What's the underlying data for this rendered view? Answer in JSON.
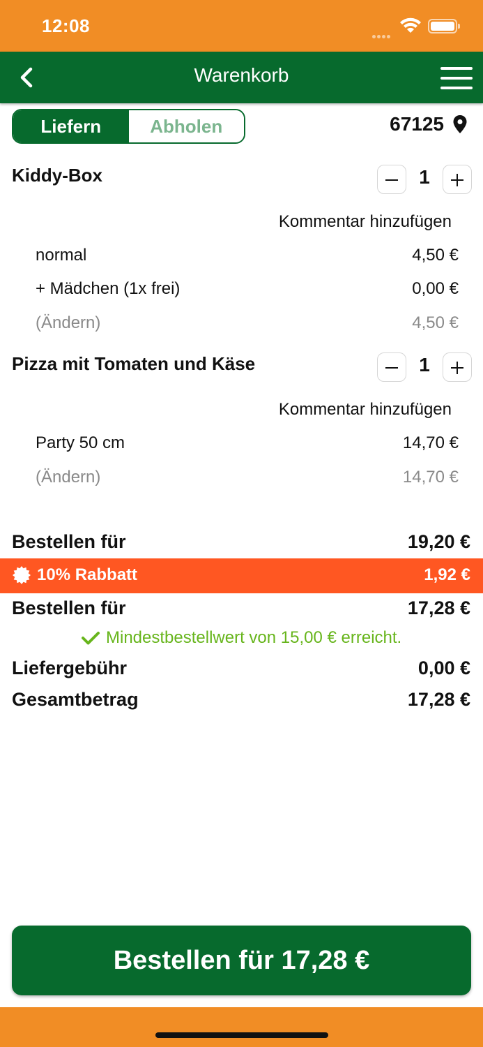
{
  "status_bar": {
    "time": "12:08"
  },
  "nav": {
    "title": "Warenkorb"
  },
  "delivery_toggle": {
    "active": "Liefern",
    "inactive": "Abholen"
  },
  "location": {
    "postcode": "67125"
  },
  "items": [
    {
      "title": "Kiddy-Box",
      "quantity": "1",
      "comment": "Kommentar hinzufügen",
      "lines": [
        {
          "label": "normal",
          "price": "4,50 €"
        },
        {
          "label": "+ Mädchen (1x frei)",
          "price": "0,00 €"
        },
        {
          "label": "(Ändern)",
          "price": "4,50 €"
        }
      ]
    },
    {
      "title": "Pizza mit Tomaten und Käse",
      "quantity": "1",
      "comment": "Kommentar hinzufügen",
      "lines": [
        {
          "label": "Party 50 cm",
          "price": "14,70 €"
        },
        {
          "label": "(Ändern)",
          "price": "14,70 €"
        }
      ]
    }
  ],
  "summary": {
    "subtotal_label": "Bestellen für",
    "subtotal_value": "19,20 €",
    "discount_label": "10% Rabbatt",
    "discount_value": "1,92 €",
    "after_discount_label": "Bestellen für",
    "after_discount_value": "17,28 €",
    "minimum_note": "Mindestbestellwert von 15,00 € erreicht.",
    "delivery_fee_label": "Liefergebühr",
    "delivery_fee_value": "0,00 €",
    "total_label": "Gesamtbetrag",
    "total_value": "17,28 €"
  },
  "order_button": {
    "label": "Bestellen für 17,28 €"
  },
  "colors": {
    "status_bar": "#F18D25",
    "brand_green": "#076A2D",
    "discount_orange": "#FF5722",
    "success_green": "#67B51C"
  }
}
